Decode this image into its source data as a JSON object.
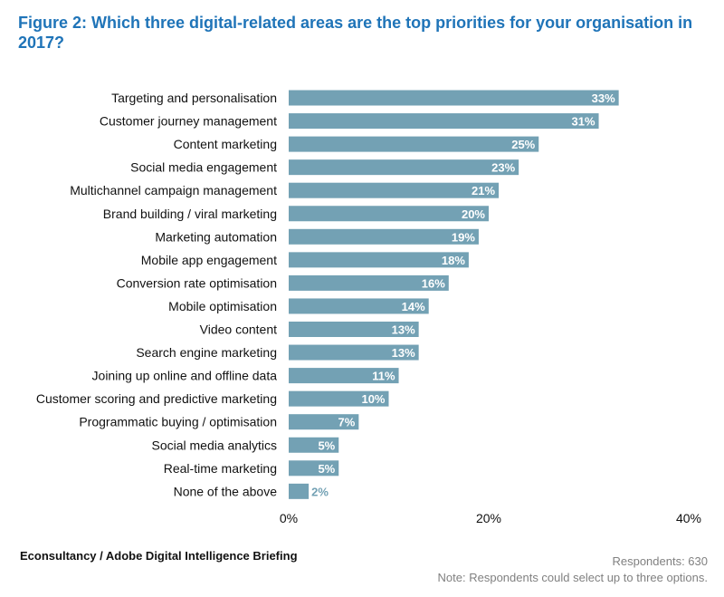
{
  "title": "Figure 2: Which three digital-related areas are the top priorities for your organisation in 2017?",
  "source": "Econsultancy / Adobe Digital Intelligence Briefing",
  "respondents": "Respondents: 630",
  "note": "Note: Respondents could select up to three options.",
  "colors": {
    "bar": "#73a1b4",
    "bar_label": "#ffffff",
    "last_bar_label": "#73a1b4",
    "title": "#1f74b8"
  },
  "chart_data": {
    "type": "bar",
    "orientation": "horizontal",
    "categories": [
      "Targeting and personalisation",
      "Customer journey management",
      "Content marketing",
      "Social media engagement",
      "Multichannel campaign management",
      "Brand building / viral marketing",
      "Marketing automation",
      "Mobile app engagement",
      "Conversion rate optimisation",
      "Mobile optimisation",
      "Video content",
      "Search engine marketing",
      "Joining up online and offline data",
      "Customer scoring and predictive marketing",
      "Programmatic buying / optimisation",
      "Social media analytics",
      "Real-time marketing",
      "None of the above"
    ],
    "values": [
      33,
      31,
      25,
      23,
      21,
      20,
      19,
      18,
      16,
      14,
      13,
      13,
      11,
      10,
      7,
      5,
      5,
      2
    ],
    "data_labels": [
      "33%",
      "31%",
      "25%",
      "23%",
      "21%",
      "20%",
      "19%",
      "18%",
      "16%",
      "14%",
      "13%",
      "13%",
      "11%",
      "10%",
      "7%",
      "5%",
      "5%",
      "2%"
    ],
    "xlim": [
      0,
      40
    ],
    "x_ticks": [
      "0%",
      "20%",
      "40%"
    ],
    "grid": false,
    "legend": false
  }
}
